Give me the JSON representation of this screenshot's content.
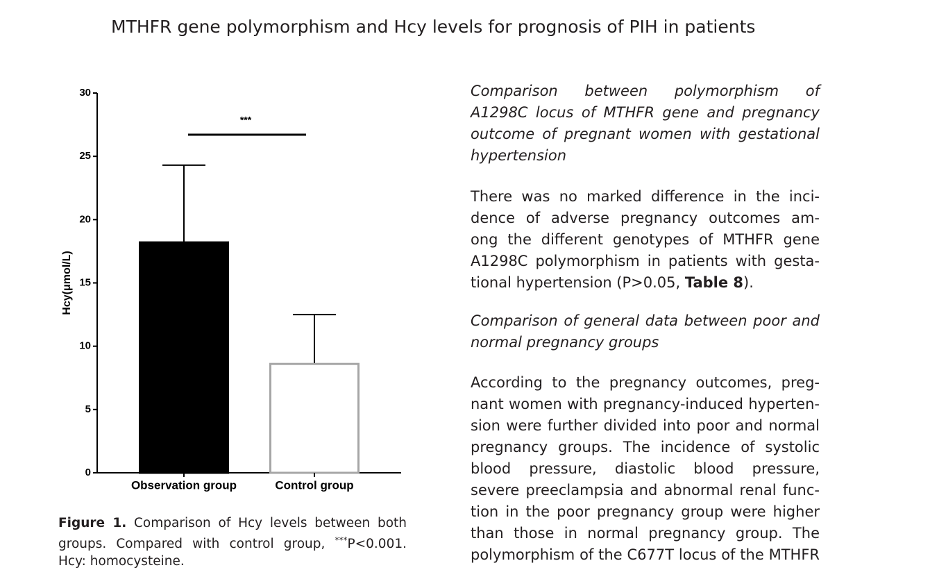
{
  "header": {
    "title": "MTHFR gene polymorphism and Hcy levels for prognosis of PIH in patients"
  },
  "chart_data": {
    "type": "bar",
    "ylabel": "Hcy(μmol/L)",
    "categories": [
      "Observation group",
      "Control group"
    ],
    "values": [
      18.2,
      8.6
    ],
    "errors": [
      6.1,
      3.9
    ],
    "fills": [
      "#000000",
      "#ffffff"
    ],
    "edges": [
      "#000000",
      "#a6a6a6"
    ],
    "ylim": [
      0,
      30
    ],
    "yticks": [
      0,
      5,
      10,
      15,
      20,
      25,
      30
    ],
    "annotation": "***"
  },
  "caption": {
    "label": "Figure 1.",
    "text": "Comparison of Hcy levels between both groups. Compared with control group, ",
    "sup": "***",
    "rest": "P<0.001. Hcy: homocysteine."
  },
  "text": {
    "heading1": [
      "Comparison between polymorphism of",
      "A1298C locus of MTHFR gene and pregnancy",
      "outcome of pregnant women with gestational",
      "hypertension"
    ],
    "paragraph1": [
      "There was no marked difference in the inci-",
      "dence of adverse pregnancy outcomes am-",
      "ong the different genotypes of MTHFR gene",
      "A1298C polymorphism in patients with gesta-"
    ],
    "paragraph1_last": [
      "tional hypertension (P>0.05, ",
      "Table 8",
      ")."
    ],
    "heading2": [
      "Comparison of general data between poor and",
      "normal pregnancy groups"
    ],
    "paragraph2": [
      "According to the pregnancy outcomes, preg-",
      "nant women with pregnancy-induced hyperten-",
      "sion were further divided into poor and normal",
      "pregnancy groups. The incidence of systolic",
      "blood pressure, diastolic blood pressure,",
      "severe preeclampsia and abnormal renal func-",
      "tion in the poor pregnancy group were higher",
      "than those in normal pregnancy group. The",
      "polymorphism of the C677T locus of the MTHFR"
    ]
  }
}
